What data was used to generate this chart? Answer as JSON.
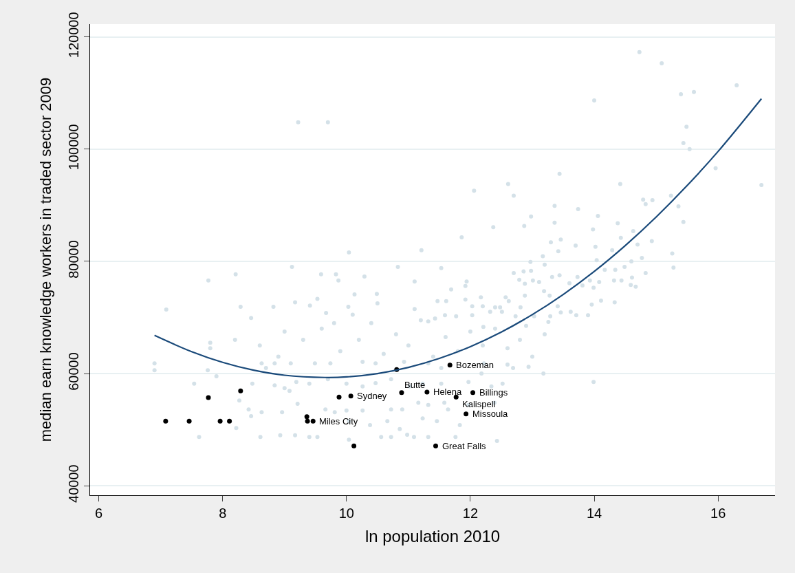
{
  "chart_data": {
    "type": "scatter",
    "xlabel": "ln population 2010",
    "ylabel": "median earn knowledge workers in traded sector 2009",
    "xlim": [
      5.86,
      16.92
    ],
    "xticks": [
      6,
      8,
      10,
      12,
      14,
      16
    ],
    "ylim": [
      38300,
      122300
    ],
    "yticks": [
      40000,
      60000,
      80000,
      100000,
      120000
    ],
    "grid": "y",
    "marker": "circle",
    "series": [
      {
        "color": "#d4e1e8",
        "x": [
          9.22,
          9.7,
          10.04,
          11.21,
          9.12,
          10.83,
          8.21,
          7.77,
          7.09,
          9.59,
          9.83,
          9.87,
          10.29,
          11.1,
          9.17,
          9.53,
          10.13,
          10.49,
          8.29,
          8.82,
          8.46,
          9.41,
          9.67,
          10.03,
          14.73,
          15.09,
          16.3,
          15.4,
          15.61,
          14.0,
          15.49,
          15.44,
          15.54,
          15.96,
          16.7,
          13.44,
          14.42,
          12.61,
          12.06,
          12.7,
          13.36,
          13.74,
          14.79,
          14.94,
          14.83,
          15.36,
          15.24,
          12.98,
          13.36,
          14.06,
          15.44,
          12.37,
          11.86,
          12.87,
          14.38,
          13.98,
          14.43,
          14.63,
          14.93,
          14.7,
          15.26,
          15.28,
          14.02,
          13.46,
          13.3,
          13.42,
          13.7,
          14.29,
          13.17,
          14.6,
          14.77,
          14.83,
          14.49,
          14.34,
          14.17,
          14.04,
          13.2,
          12.97,
          12.86,
          12.7,
          12.98,
          13.32,
          13.44,
          13.73,
          14.32,
          14.44,
          14.61,
          14.59,
          14.67,
          14.08,
          13.93,
          13.99,
          13.6,
          13.81,
          14.33,
          14.11,
          13.96,
          13.71,
          13.9,
          13.62,
          13.46,
          13.26,
          13.41,
          13.28,
          13.11,
          12.79,
          12.88,
          13.01,
          13.19,
          12.88,
          12.57,
          12.17,
          11.69,
          11.94,
          11.53,
          11.92,
          11.47,
          11.61,
          11.92,
          12.03,
          12.2,
          12.4,
          12.48,
          12.32,
          12.51,
          12.62,
          12.73,
          12.81,
          11.77,
          11.59,
          12.03,
          12.21,
          11.43,
          11.32,
          13.03,
          13.29,
          6.9,
          6.9,
          7.76,
          7.9,
          7.54,
          8.27,
          8.48,
          8.84,
          9.0,
          9.08,
          9.21,
          8.42,
          8.63,
          8.96,
          8.46,
          8.22,
          7.62,
          8.61,
          8.93,
          9.17,
          9.4,
          9.53,
          9.66,
          9.81,
          10.0,
          10.04,
          10.04,
          10.26,
          10.38,
          10.56,
          10.66,
          10.72,
          10.86,
          10.98,
          11.09,
          11.23,
          11.32,
          11.46,
          11.76,
          11.83,
          12.43,
          11.64,
          10.9,
          10.72,
          11.16,
          11.32,
          11.58,
          11.97,
          12.39,
          12.52,
          12.69,
          12.94,
          13.18,
          11.97,
          12.18,
          12.34,
          11.53,
          11.23,
          11.02,
          10.72,
          10.47,
          10.26,
          10.0,
          9.7,
          9.4,
          9.19,
          8.84,
          8.63,
          9.1,
          9.49,
          9.74,
          10.26,
          10.47,
          10.93,
          11.32,
          11.53,
          12.22,
          12.6,
          9.3,
          9.6,
          9.9,
          10.2,
          10.4,
          10.6,
          10.8,
          11.0,
          11.2,
          11.4,
          11.6,
          11.8,
          12.0,
          12.2,
          12.4,
          12.6,
          10.1,
          9.8,
          8.9,
          8.6,
          8.2,
          9.0,
          10.5,
          11.1,
          12.8,
          13.0,
          13.2,
          12.9,
          7.8,
          7.8,
          8.7,
          13.99
        ],
        "values": [
          104800,
          104800,
          81600,
          82000,
          79000,
          79000,
          77700,
          76600,
          71400,
          77700,
          77700,
          76600,
          77300,
          76400,
          72700,
          73300,
          74100,
          74200,
          71900,
          71900,
          69900,
          72100,
          70800,
          71900,
          117300,
          115300,
          111400,
          109800,
          110200,
          108700,
          104000,
          101100,
          100000,
          96600,
          93600,
          95600,
          93800,
          93800,
          92600,
          91700,
          89900,
          89300,
          91000,
          90900,
          90200,
          89800,
          91700,
          88000,
          86900,
          88100,
          87000,
          86100,
          84300,
          86300,
          86800,
          85700,
          84200,
          85400,
          83600,
          83000,
          81400,
          78900,
          82600,
          83900,
          83400,
          81800,
          82800,
          82000,
          80900,
          80000,
          80600,
          77900,
          79000,
          78500,
          78500,
          80200,
          79400,
          79900,
          78200,
          77900,
          78300,
          77200,
          77500,
          77200,
          76600,
          76600,
          77100,
          75800,
          75500,
          76300,
          76600,
          75300,
          76100,
          75700,
          72700,
          73000,
          72300,
          70400,
          70400,
          71000,
          70900,
          69200,
          72000,
          73900,
          76300,
          76700,
          76000,
          76600,
          74700,
          73900,
          73600,
          73600,
          75000,
          76400,
          78800,
          75600,
          72900,
          72900,
          73200,
          72000,
          72000,
          71800,
          71800,
          71000,
          71000,
          72900,
          70200,
          71800,
          70200,
          70400,
          70400,
          68300,
          69800,
          69300,
          70200,
          70200,
          61800,
          60600,
          60600,
          59500,
          58200,
          55200,
          58200,
          57900,
          57400,
          56900,
          54600,
          53600,
          53100,
          53100,
          52400,
          50300,
          48700,
          48700,
          49000,
          49000,
          48700,
          48700,
          53600,
          53100,
          53400,
          51500,
          48200,
          53400,
          50800,
          48700,
          51500,
          48700,
          50100,
          49100,
          48700,
          52000,
          48700,
          51500,
          48700,
          50800,
          48000,
          53600,
          53600,
          53600,
          54800,
          54400,
          54800,
          54400,
          54800,
          58200,
          61000,
          61200,
          60000,
          58500,
          60000,
          57700,
          58200,
          58200,
          57700,
          59000,
          58300,
          57700,
          58200,
          59000,
          58200,
          58500,
          61800,
          61800,
          61800,
          61800,
          61800,
          62100,
          61800,
          62100,
          61800,
          61000,
          61800,
          61600,
          66000,
          68000,
          64000,
          66000,
          69000,
          63500,
          67000,
          65000,
          69500,
          63000,
          66500,
          64000,
          67500,
          65000,
          68000,
          64500,
          70500,
          69000,
          63000,
          65000,
          66000,
          67500,
          72500,
          71500,
          66000,
          63000,
          67000,
          68500,
          65500,
          64500,
          61000,
          58500
        ]
      },
      {
        "color": "#000000",
        "x": [
          11.67,
          10.81,
          8.29,
          7.77,
          7.08,
          7.46,
          7.96,
          8.11,
          9.36,
          9.37,
          9.46,
          9.88,
          10.07,
          10.12,
          10.89,
          11.3,
          11.77,
          12.04,
          11.93,
          11.44
        ],
        "values": [
          61500,
          60700,
          56900,
          55700,
          51500,
          51500,
          51500,
          51500,
          52300,
          51500,
          51500,
          55800,
          56000,
          47100,
          56600,
          56700,
          55800,
          56600,
          52800,
          47100
        ]
      },
      {
        "type": "line",
        "marker": "none",
        "color": "#1a4a7a",
        "x": [
          6.9,
          7.5,
          8,
          8.5,
          9,
          9.65,
          10,
          10.5,
          11,
          11.5,
          12,
          12.5,
          13,
          13.5,
          14,
          14.5,
          15,
          15.5,
          16,
          16.7
        ],
        "values": [
          66800,
          63900,
          62000,
          60600,
          59700,
          59300,
          59400,
          60000,
          61100,
          62700,
          64800,
          67400,
          70500,
          74100,
          78200,
          82800,
          87900,
          93500,
          99600,
          109000
        ]
      }
    ],
    "annotations": [
      {
        "text": "Bozeman",
        "x": 11.67,
        "y": 61500
      },
      {
        "text": "Miles City",
        "x": 9.46,
        "y": 51500
      },
      {
        "text": "Sydney",
        "x": 10.07,
        "y": 56000
      },
      {
        "text": "Butte",
        "x": 10.89,
        "y": 56600
      },
      {
        "text": "Helena",
        "x": 11.3,
        "y": 56700
      },
      {
        "text": "Kalispell",
        "x": 11.77,
        "y": 55800
      },
      {
        "text": "Billings",
        "x": 12.04,
        "y": 56600
      },
      {
        "text": "Missoula",
        "x": 11.93,
        "y": 52800
      },
      {
        "text": "Great Falls",
        "x": 11.44,
        "y": 47100
      }
    ]
  }
}
